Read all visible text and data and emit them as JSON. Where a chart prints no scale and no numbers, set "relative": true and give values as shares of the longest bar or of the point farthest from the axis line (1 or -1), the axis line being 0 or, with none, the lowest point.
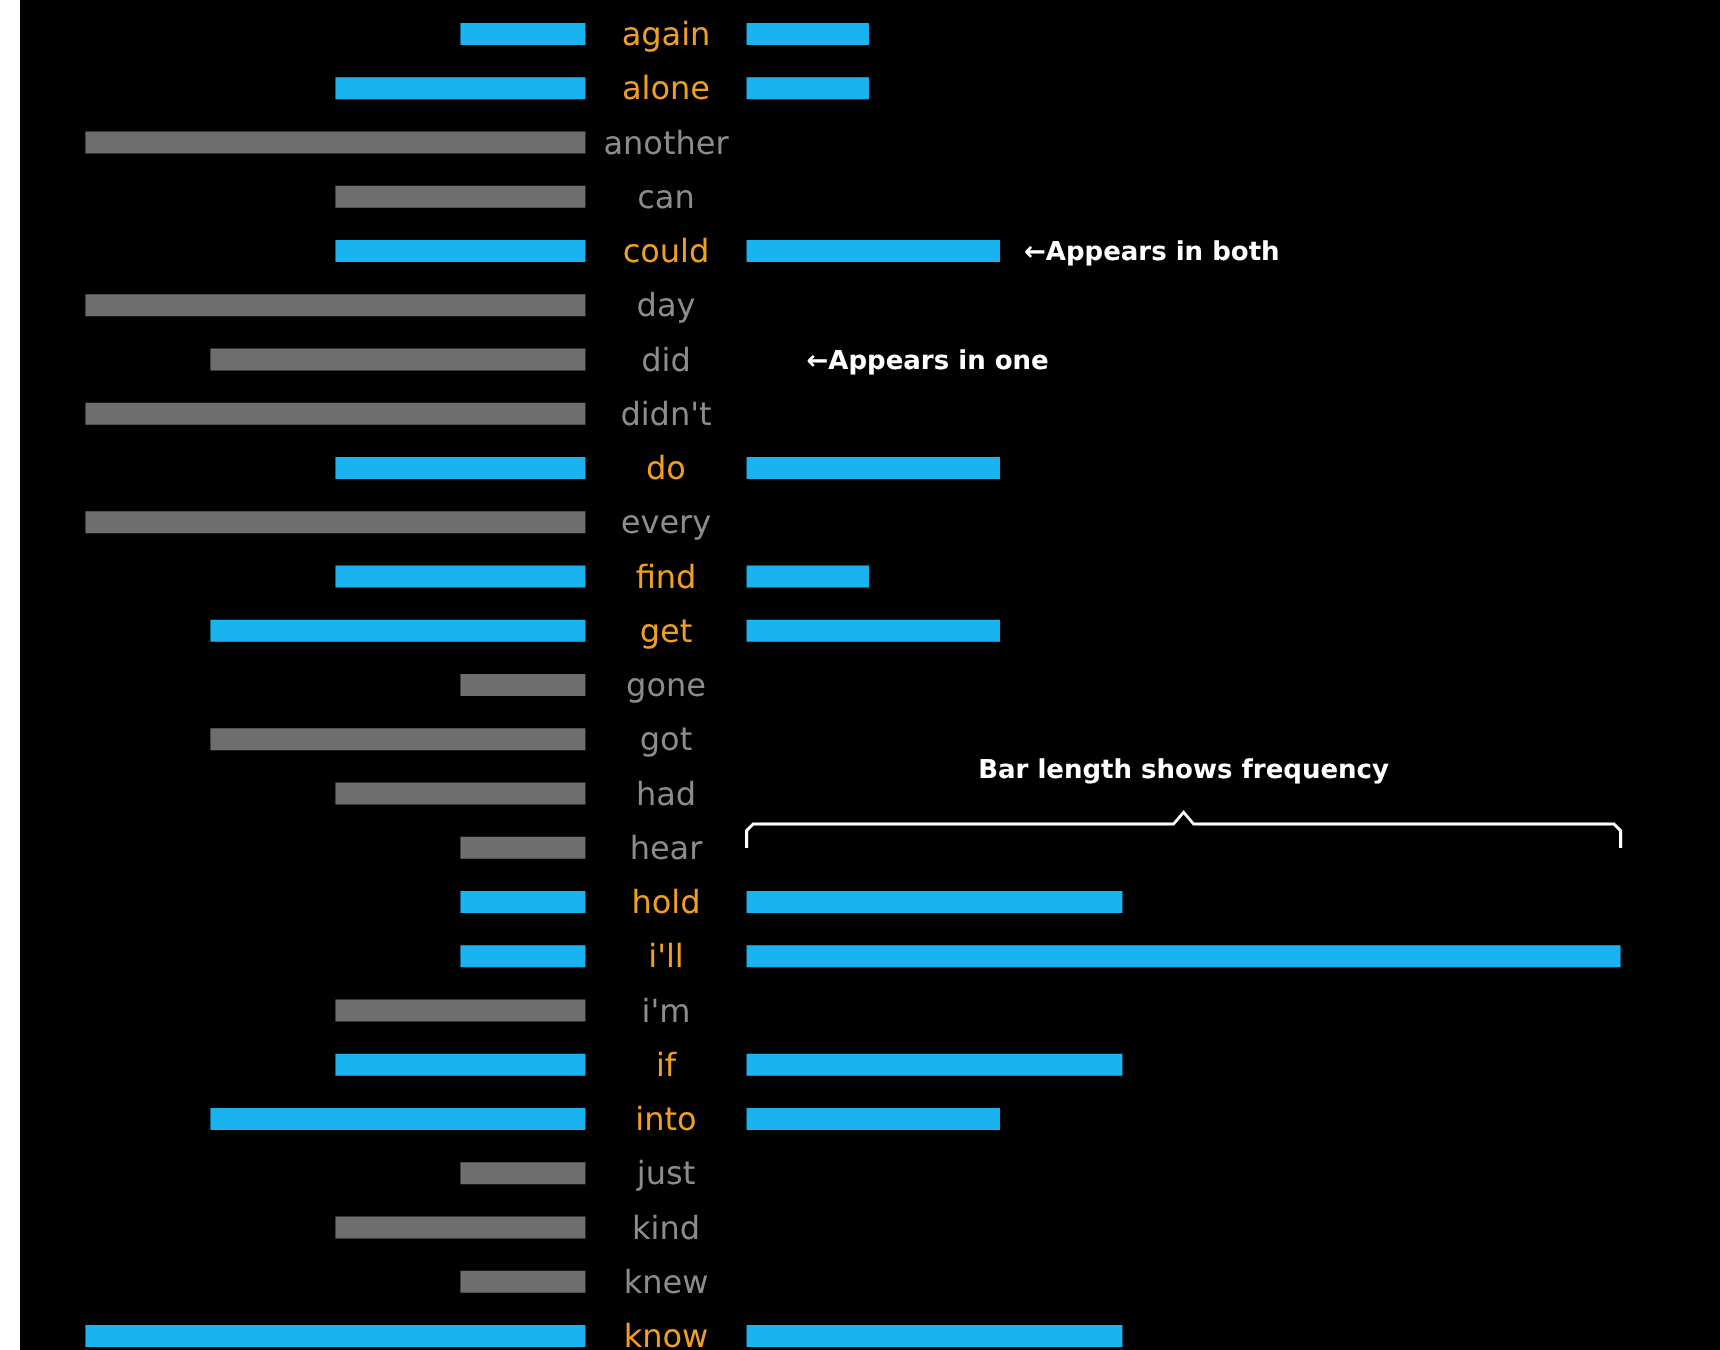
{
  "chart_data": [
    {
      "type": "bar",
      "orientation": "horizontal",
      "relative": true,
      "categories": [
        "again",
        "alone",
        "another",
        "can",
        "could",
        "day",
        "did",
        "didn't",
        "do",
        "every",
        "find",
        "get",
        "gone",
        "got",
        "had",
        "hear",
        "hold",
        "i'll",
        "i'm",
        "if",
        "into",
        "just",
        "kind",
        "knew",
        "know"
      ],
      "values": [
        -0.25,
        -0.5,
        -1,
        -0.5,
        -0.5,
        -1,
        -0.75,
        -1,
        -0.5,
        -1,
        -0.5,
        -0.75,
        -0.25,
        -0.75,
        -0.5,
        -0.25,
        -0.25,
        -0.25,
        -0.5,
        -0.5,
        -0.75,
        -0.25,
        -0.5,
        -0.25,
        -1
      ],
      "colors": [
        "#19b4f0",
        "#19b4f0",
        "#6e6e6e",
        "#6e6e6e",
        "#19b4f0",
        "#6e6e6e",
        "#6e6e6e",
        "#6e6e6e",
        "#19b4f0",
        "#6e6e6e",
        "#19b4f0",
        "#19b4f0",
        "#6e6e6e",
        "#6e6e6e",
        "#6e6e6e",
        "#6e6e6e",
        "#19b4f0",
        "#19b4f0",
        "#6e6e6e",
        "#19b4f0",
        "#19b4f0",
        "#6e6e6e",
        "#6e6e6e",
        "#6e6e6e",
        "#19b4f0"
      ]
    },
    {
      "type": "bar",
      "orientation": "horizontal",
      "relative": true,
      "tick_labels": false,
      "categories": [
        "again",
        "alone",
        "another",
        "can",
        "could",
        "day",
        "did",
        "didn't",
        "do",
        "every",
        "find",
        "get",
        "gone",
        "got",
        "had",
        "hear",
        "hold",
        "i'll",
        "i'm",
        "if",
        "into",
        "just",
        "kind",
        "knew",
        "know"
      ],
      "values": [
        0.14,
        0.14,
        null,
        null,
        0.29,
        null,
        null,
        null,
        0.29,
        null,
        0.14,
        0.29,
        null,
        null,
        null,
        null,
        0.43,
        1,
        null,
        0.43,
        0.29,
        null,
        null,
        null,
        0.43
      ],
      "color": "#19b4f0",
      "annotations": [
        "←Appears in both",
        "←Appears in one",
        "Bar length shows frequency"
      ]
    }
  ]
}
